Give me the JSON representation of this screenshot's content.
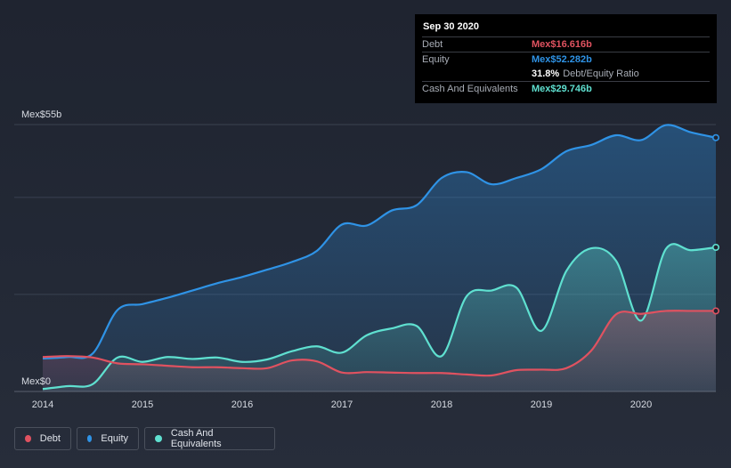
{
  "tooltip": {
    "date": "Sep 30 2020",
    "rows": {
      "debt": {
        "label": "Debt",
        "value": "Mex$16.616b"
      },
      "equity": {
        "label": "Equity",
        "value": "Mex$52.282b"
      },
      "ratio": {
        "value": "31.8%",
        "label": "Debt/Equity Ratio"
      },
      "cash": {
        "label": "Cash And Equivalents",
        "value": "Mex$29.746b"
      }
    }
  },
  "legend": [
    {
      "label": "Debt",
      "color": "#e05260"
    },
    {
      "label": "Equity",
      "color": "#2f93e6"
    },
    {
      "label": "Cash And Equivalents",
      "color": "#5fe0d0"
    }
  ],
  "chart_data": {
    "type": "area",
    "title": "",
    "xlabel": "",
    "ylabel": "",
    "ylim": [
      0,
      55
    ],
    "y_tick_labels": [
      "Mex$0",
      "Mex$55b"
    ],
    "x_tick_labels": [
      "2014",
      "2015",
      "2016",
      "2017",
      "2018",
      "2019",
      "2020"
    ],
    "xlim": [
      2014,
      2020.75
    ],
    "series": [
      {
        "name": "Equity",
        "color": "#2f93e6",
        "x": [
          2014.0,
          2014.25,
          2014.5,
          2014.75,
          2015.0,
          2015.25,
          2015.5,
          2015.75,
          2016.0,
          2016.25,
          2016.5,
          2016.75,
          2017.0,
          2017.25,
          2017.5,
          2017.75,
          2018.0,
          2018.25,
          2018.5,
          2018.75,
          2019.0,
          2019.25,
          2019.5,
          2019.75,
          2020.0,
          2020.25,
          2020.5,
          2020.75
        ],
        "values": [
          6.8,
          7.1,
          7.8,
          16.8,
          18.0,
          19.3,
          20.8,
          22.3,
          23.6,
          25.1,
          26.7,
          29.0,
          34.4,
          34.2,
          37.3,
          38.4,
          44.0,
          45.2,
          42.7,
          44.0,
          45.8,
          49.5,
          50.8,
          52.8,
          51.8,
          54.9,
          53.4,
          52.3
        ]
      },
      {
        "name": "Cash And Equivalents",
        "color": "#5fe0d0",
        "x": [
          2014.0,
          2014.25,
          2014.5,
          2014.75,
          2015.0,
          2015.25,
          2015.5,
          2015.75,
          2016.0,
          2016.25,
          2016.5,
          2016.75,
          2017.0,
          2017.25,
          2017.5,
          2017.75,
          2018.0,
          2018.25,
          2018.5,
          2018.75,
          2019.0,
          2019.25,
          2019.5,
          2019.75,
          2020.0,
          2020.25,
          2020.5,
          2020.75
        ],
        "values": [
          0.5,
          1.1,
          1.5,
          7.0,
          6.1,
          7.1,
          6.7,
          7.0,
          6.1,
          6.6,
          8.3,
          9.3,
          8.0,
          11.6,
          13.0,
          13.5,
          7.3,
          19.6,
          20.8,
          21.4,
          12.5,
          24.8,
          29.5,
          26.9,
          14.6,
          29.4,
          29.1,
          29.7
        ]
      },
      {
        "name": "Debt",
        "color": "#e05260",
        "x": [
          2014.0,
          2014.25,
          2014.5,
          2014.75,
          2015.0,
          2015.25,
          2015.5,
          2015.75,
          2016.0,
          2016.25,
          2016.5,
          2016.75,
          2017.0,
          2017.25,
          2017.5,
          2017.75,
          2018.0,
          2018.25,
          2018.5,
          2018.75,
          2019.0,
          2019.25,
          2019.5,
          2019.75,
          2020.0,
          2020.25,
          2020.5,
          2020.75
        ],
        "values": [
          7.1,
          7.3,
          7.0,
          5.8,
          5.6,
          5.3,
          5.0,
          5.0,
          4.8,
          4.8,
          6.4,
          6.2,
          3.9,
          4.0,
          3.9,
          3.8,
          3.8,
          3.5,
          3.3,
          4.4,
          4.5,
          4.8,
          8.4,
          15.9,
          16.0,
          16.6,
          16.6,
          16.6
        ]
      }
    ]
  }
}
